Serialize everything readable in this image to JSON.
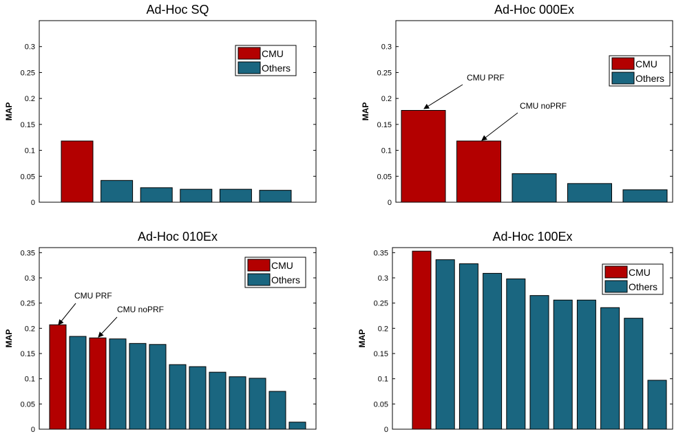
{
  "colors": {
    "cmu": "#b30000",
    "others": "#1a6680",
    "edge": "#000000"
  },
  "chart_data": [
    {
      "type": "bar",
      "title": "Ad-Hoc SQ",
      "ylabel": "MAP",
      "ylim": [
        0,
        0.35
      ],
      "yticks": [
        "0",
        "0.05",
        "0.1",
        "0.15",
        "0.2",
        "0.25",
        "0.3"
      ],
      "values": [
        0.118,
        0.042,
        0.028,
        0.025,
        0.025,
        0.023
      ],
      "groups": [
        "CMU",
        "Others",
        "Others",
        "Others",
        "Others",
        "Others"
      ],
      "legend": {
        "entries": [
          "CMU",
          "Others"
        ],
        "position": "top-right"
      },
      "annotations": []
    },
    {
      "type": "bar",
      "title": "Ad-Hoc 000Ex",
      "ylabel": "MAP",
      "ylim": [
        0,
        0.35
      ],
      "yticks": [
        "0",
        "0.05",
        "0.1",
        "0.15",
        "0.2",
        "0.25",
        "0.3"
      ],
      "values": [
        0.177,
        0.118,
        0.055,
        0.036,
        0.024
      ],
      "groups": [
        "CMU",
        "CMU",
        "Others",
        "Others",
        "Others"
      ],
      "legend": {
        "entries": [
          "CMU",
          "Others"
        ],
        "position": "top-right"
      },
      "annotations": [
        {
          "text": "CMU PRF",
          "bar": 0
        },
        {
          "text": "CMU noPRF",
          "bar": 1
        }
      ]
    },
    {
      "type": "bar",
      "title": "Ad-Hoc 010Ex",
      "ylabel": "MAP",
      "ylim": [
        0,
        0.36
      ],
      "yticks": [
        "0",
        "0.05",
        "0.1",
        "0.15",
        "0.2",
        "0.25",
        "0.3",
        "0.35"
      ],
      "values": [
        0.207,
        0.184,
        0.181,
        0.179,
        0.17,
        0.168,
        0.128,
        0.124,
        0.113,
        0.104,
        0.101,
        0.075,
        0.014
      ],
      "groups": [
        "CMU",
        "Others",
        "CMU",
        "Others",
        "Others",
        "Others",
        "Others",
        "Others",
        "Others",
        "Others",
        "Others",
        "Others",
        "Others"
      ],
      "legend": {
        "entries": [
          "CMU",
          "Others"
        ],
        "position": "top-right"
      },
      "annotations": [
        {
          "text": "CMU PRF",
          "bar": 0
        },
        {
          "text": "CMU noPRF",
          "bar": 2
        }
      ]
    },
    {
      "type": "bar",
      "title": "Ad-Hoc 100Ex",
      "ylabel": "MAP",
      "ylim": [
        0,
        0.36
      ],
      "yticks": [
        "0",
        "0.05",
        "0.1",
        "0.15",
        "0.2",
        "0.25",
        "0.3",
        "0.35"
      ],
      "values": [
        0.353,
        0.336,
        0.328,
        0.309,
        0.298,
        0.265,
        0.256,
        0.256,
        0.241,
        0.22,
        0.097
      ],
      "groups": [
        "CMU",
        "Others",
        "Others",
        "Others",
        "Others",
        "Others",
        "Others",
        "Others",
        "Others",
        "Others",
        "Others"
      ],
      "legend": {
        "entries": [
          "CMU",
          "Others"
        ],
        "position": "top-right"
      },
      "annotations": []
    }
  ]
}
